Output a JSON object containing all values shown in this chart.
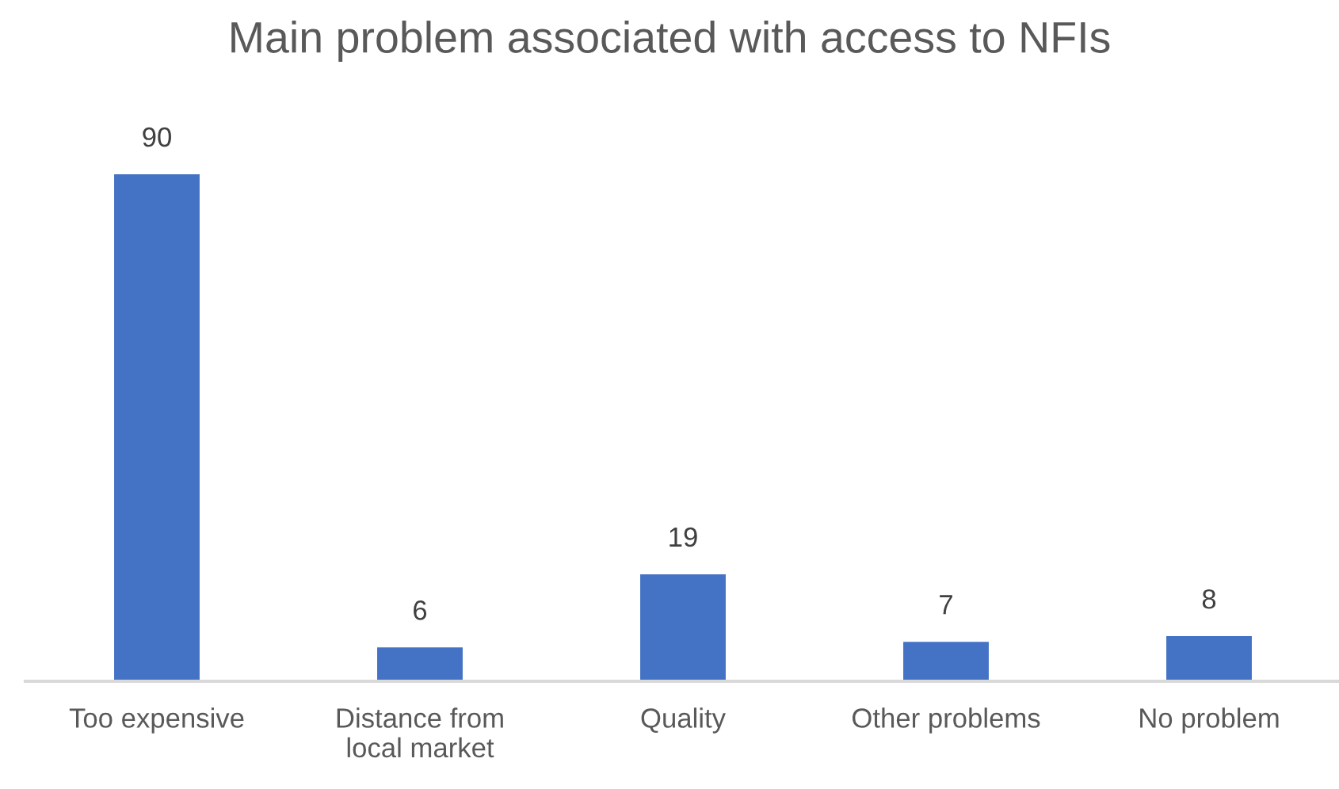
{
  "chart_data": {
    "type": "bar",
    "title": "Main problem associated with access to NFIs",
    "categories": [
      "Too expensive",
      "Distance from\nlocal market",
      "Quality",
      "Other problems",
      "No problem"
    ],
    "values": [
      90,
      6,
      19,
      7,
      8
    ],
    "color": "#4472c4",
    "data_labels": true,
    "grid": false,
    "legend": false,
    "tick_labels": "x"
  }
}
